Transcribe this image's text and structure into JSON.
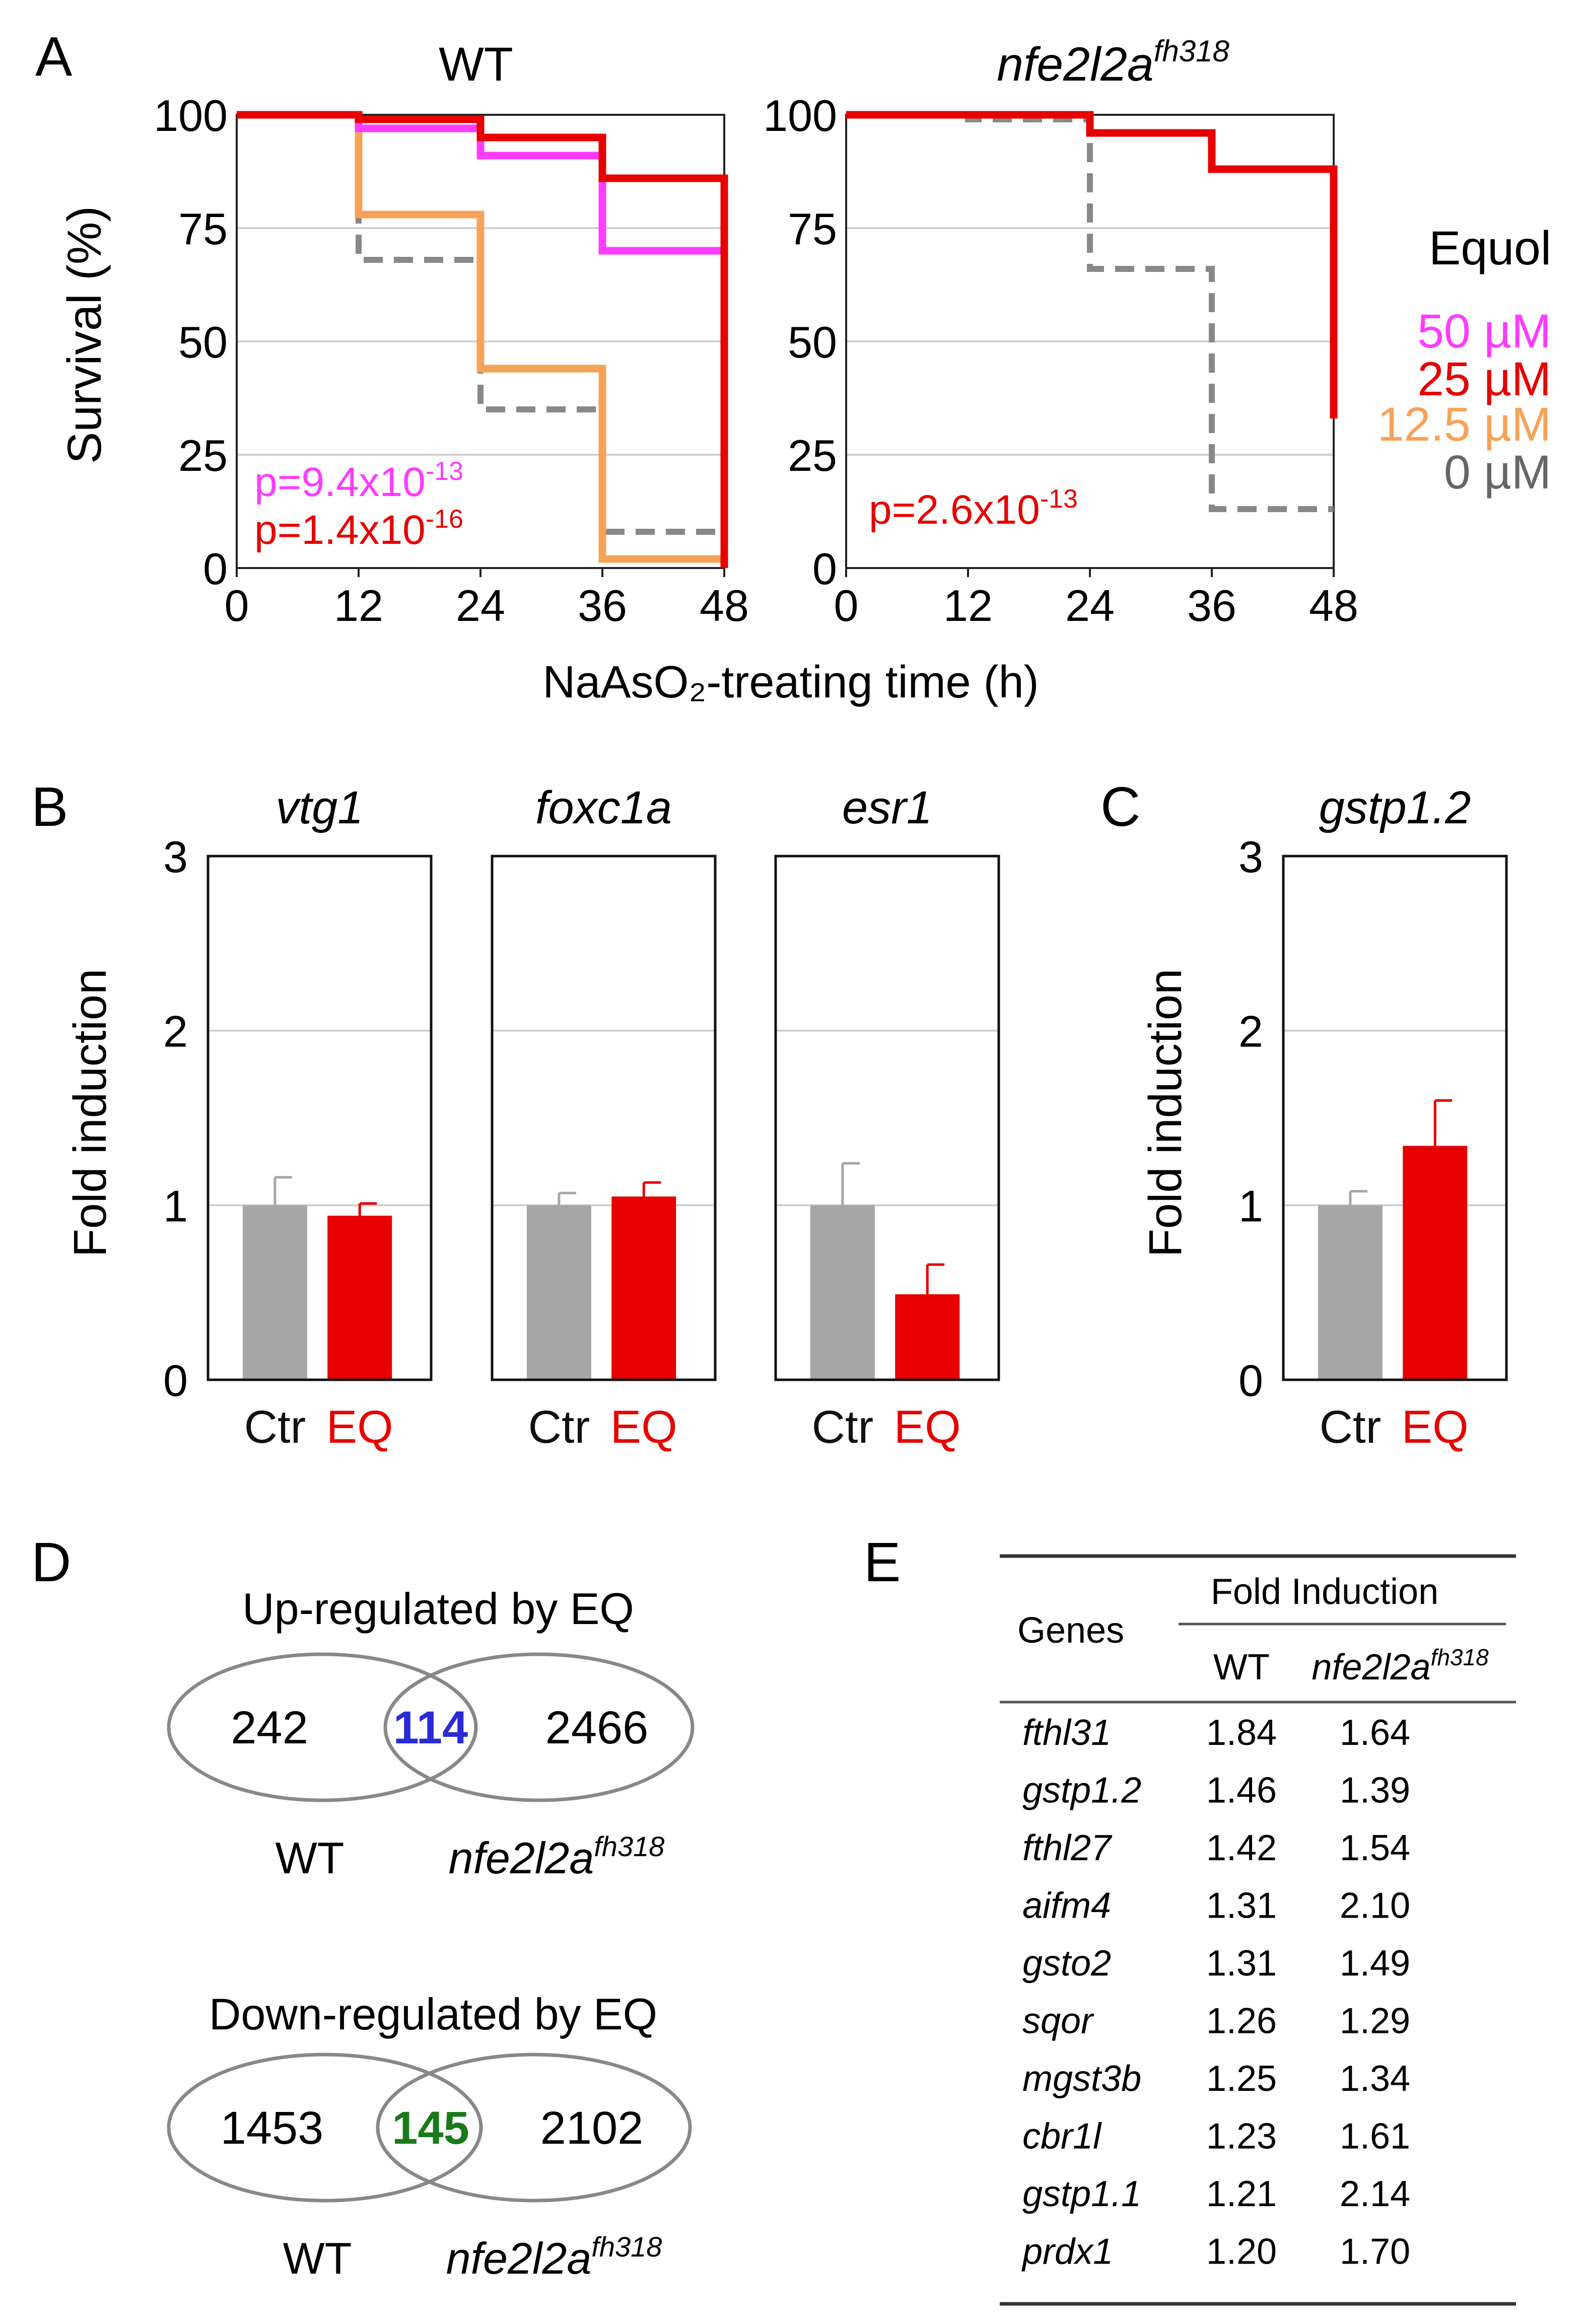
{
  "colors": {
    "magenta": "#ff3bff",
    "red": "#e60000",
    "orange": "#f7a257",
    "gray": "#888888",
    "barGray": "#a6a6a6",
    "blue": "#2a2ad6",
    "green": "#1a7a1a"
  },
  "panel_labels": {
    "A": "A",
    "B": "B",
    "C": "C",
    "D": "D",
    "E": "E"
  },
  "chart_data": [
    {
      "type": "line",
      "title": "WT",
      "xlabel": "NaAsO₂-treating time (h)",
      "ylabel": "Survival (%)",
      "xlim": [
        0,
        48
      ],
      "ylim": [
        0,
        100
      ],
      "xticks": [
        "0",
        "12",
        "24",
        "36",
        "48"
      ],
      "yticks": [
        "0",
        "25",
        "50",
        "75",
        "100"
      ],
      "series": [
        {
          "name": "0 µM",
          "color": "#888888",
          "x": [
            0,
            12,
            24,
            36,
            48
          ],
          "y": [
            100,
            68,
            35,
            8,
            8
          ]
        },
        {
          "name": "12.5 µM",
          "color": "#f7a257",
          "x": [
            0,
            12,
            24,
            36,
            48
          ],
          "y": [
            100,
            78,
            44,
            2,
            2
          ]
        },
        {
          "name": "50 µM",
          "color": "#ff3bff",
          "x": [
            0,
            12,
            24,
            36,
            48
          ],
          "y": [
            100,
            97,
            91,
            70,
            70
          ]
        },
        {
          "name": "25 µM",
          "color": "#e60000",
          "x": [
            0,
            12,
            24,
            36,
            48
          ],
          "y": [
            100,
            99,
            95,
            86,
            0
          ]
        }
      ],
      "pvalues": [
        {
          "base": "p=9.4x10",
          "exp": "-13",
          "color": "#ff3bff"
        },
        {
          "base": "p=1.4x10",
          "exp": "-16",
          "color": "#e60000"
        }
      ]
    },
    {
      "type": "line",
      "title": "nfe2l2a",
      "title_sup": "fh318",
      "xlim": [
        0,
        48
      ],
      "ylim": [
        0,
        100
      ],
      "xticks": [
        "0",
        "12",
        "24",
        "36",
        "48"
      ],
      "yticks": [
        "0",
        "25",
        "50",
        "75",
        "100"
      ],
      "series": [
        {
          "name": "0 µM",
          "color": "#888888",
          "x": [
            0,
            12,
            24,
            36,
            48
          ],
          "y": [
            100,
            99,
            66,
            13,
            13
          ]
        },
        {
          "name": "25 µM",
          "color": "#e60000",
          "x": [
            0,
            12,
            24,
            36,
            48
          ],
          "y": [
            100,
            100,
            96,
            88,
            33
          ]
        }
      ],
      "pvalues": [
        {
          "base": "p=2.6x10",
          "exp": "-13",
          "color": "#e60000"
        }
      ],
      "legend": {
        "title": "Equol",
        "items": [
          {
            "label": "50 µM",
            "color": "#ff3bff"
          },
          {
            "label": "25 µM",
            "color": "#e60000"
          },
          {
            "label": "12.5 µM",
            "color": "#f7a257"
          },
          {
            "label": "0 µM",
            "color": "#666666"
          }
        ]
      }
    },
    {
      "type": "bar",
      "ylabel": "Fold induction",
      "ylim": [
        0,
        3
      ],
      "yticks": [
        "0",
        "1",
        "2",
        "3"
      ],
      "categories": [
        "Ctr",
        "EQ"
      ],
      "panels": [
        {
          "gene": "vtg1",
          "values": [
            1.0,
            0.94
          ],
          "errors": [
            0.16,
            0.07
          ]
        },
        {
          "gene": "foxc1a",
          "values": [
            1.0,
            1.05
          ],
          "errors": [
            0.07,
            0.08
          ]
        },
        {
          "gene": "esr1",
          "values": [
            1.0,
            0.49
          ],
          "errors": [
            0.24,
            0.17
          ]
        }
      ]
    },
    {
      "type": "bar",
      "ylabel": "Fold induction",
      "ylim": [
        0,
        3
      ],
      "yticks": [
        "0",
        "1",
        "2",
        "3"
      ],
      "categories": [
        "Ctr",
        "EQ"
      ],
      "panels": [
        {
          "gene": "gstp1.2",
          "values": [
            1.0,
            1.34
          ],
          "errors": [
            0.08,
            0.26
          ]
        }
      ]
    }
  ],
  "venn": [
    {
      "title": "Up-regulated by EQ",
      "left": "242",
      "overlap": "114",
      "right": "2466",
      "overlap_color": "#2a2ad6",
      "label_left": "WT",
      "label_right": "nfe2l2a",
      "label_right_sup": "fh318"
    },
    {
      "title": "Down-regulated by EQ",
      "left": "1453",
      "overlap": "145",
      "right": "2102",
      "overlap_color": "#1a7a1a",
      "label_left": "WT",
      "label_right": "nfe2l2a",
      "label_right_sup": "fh318"
    }
  ],
  "table": {
    "header_genes": "Genes",
    "header_group": "Fold Induction",
    "header_wt": "WT",
    "header_mut": "nfe2l2a",
    "header_mut_sup": "fh318",
    "rows": [
      {
        "gene": "fthl31",
        "wt": "1.84",
        "mut": "1.64"
      },
      {
        "gene": "gstp1.2",
        "wt": "1.46",
        "mut": "1.39"
      },
      {
        "gene": "fthl27",
        "wt": "1.42",
        "mut": "1.54"
      },
      {
        "gene": "aifm4",
        "wt": "1.31",
        "mut": "2.10"
      },
      {
        "gene": "gsto2",
        "wt": "1.31",
        "mut": "1.49"
      },
      {
        "gene": "sqor",
        "wt": "1.26",
        "mut": "1.29"
      },
      {
        "gene": "mgst3b",
        "wt": "1.25",
        "mut": "1.34"
      },
      {
        "gene": "cbr1l",
        "wt": "1.23",
        "mut": "1.61"
      },
      {
        "gene": "gstp1.1",
        "wt": "1.21",
        "mut": "2.14"
      },
      {
        "gene": "prdx1",
        "wt": "1.20",
        "mut": "1.70"
      }
    ]
  }
}
